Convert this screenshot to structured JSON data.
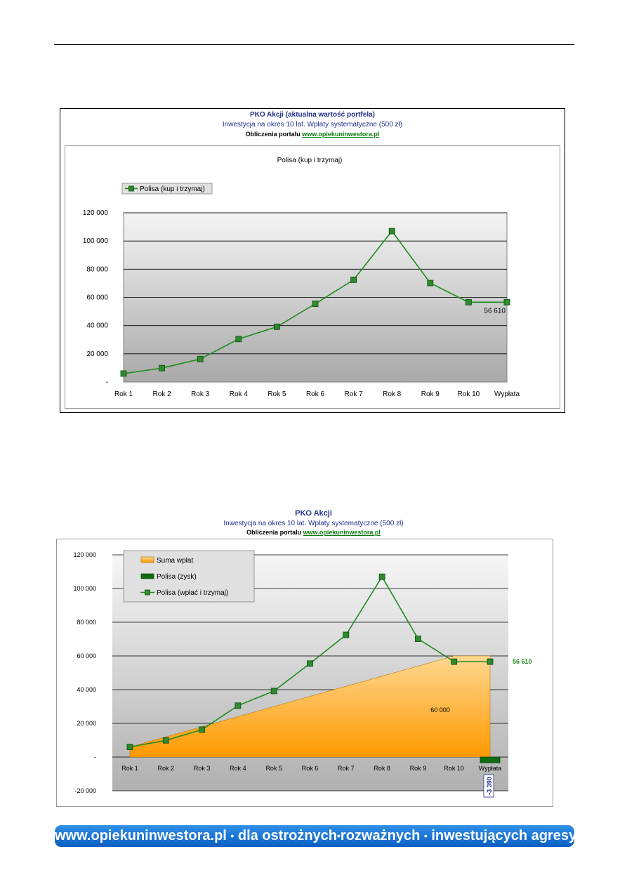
{
  "chart1": {
    "header_title": "PKO Akcji (aktualna wartość portfela)",
    "header_subtitle": "Inwestycja na okres 10 lat. Wpłaty systematyczne (500 zł)",
    "header_source_prefix": "Obliczenia portalu",
    "header_source_link": "www.opiekuninwestora.pl",
    "inner_title": "Polisa (kup i trzymaj)"
  },
  "chart2": {
    "header_title": "PKO Akcji",
    "header_subtitle": "Inwestycja na okres 10 lat. Wpłaty systematyczne (500 zł)",
    "header_source_prefix": "Obliczenia portalu",
    "header_source_link": "www.opiekuninwestora.pl"
  },
  "footer_banner": {
    "site": "www.opiekuninwestora.pl",
    "parts": [
      "dla ostrożnych",
      "rozważnych",
      "inwestujących agresywnie"
    ],
    "separator": "•"
  },
  "colors": {
    "title_blue": "#1f2f8c",
    "link_green": "#0a7a0a",
    "line_green": "#1f8a1f",
    "marker_green": "#2e8b2e",
    "area_orange_top": "#ffd890",
    "area_orange_bottom": "#ff9900",
    "banner_blue": "#1a73d9"
  },
  "chart_data": [
    {
      "type": "line",
      "title": "Polisa (kup i trzymaj)",
      "categories": [
        "Rok 1",
        "Rok 2",
        "Rok 3",
        "Rok 4",
        "Rok 5",
        "Rok 6",
        "Rok 7",
        "Rok 8",
        "Rok 9",
        "Rok 10",
        "Wypłata"
      ],
      "series": [
        {
          "name": "Polisa (kup i trzymaj)",
          "values": [
            6000,
            9900,
            16300,
            30500,
            39200,
            55500,
            72500,
            107000,
            70200,
            56610,
            56610
          ]
        }
      ],
      "data_labels": [
        {
          "category": "Wypłata",
          "series": "Polisa (kup i trzymaj)",
          "text": "56 610"
        }
      ],
      "yticks": [
        "-",
        "20 000",
        "40 000",
        "60 000",
        "80 000",
        "100 000",
        "120 000"
      ],
      "ylim": [
        0,
        120000
      ],
      "legend": "top-left",
      "grid": true
    },
    {
      "type": "area",
      "categories": [
        "Rok 1",
        "Rok 2",
        "Rok 3",
        "Rok 4",
        "Rok 5",
        "Rok 6",
        "Rok 7",
        "Rok 8",
        "Rok 9",
        "Rok 10",
        "Wypłata"
      ],
      "series": [
        {
          "name": "Suma wpłat",
          "type": "area",
          "values": [
            6000,
            12000,
            18000,
            24000,
            30000,
            36000,
            42000,
            48000,
            54000,
            60000,
            60000
          ]
        },
        {
          "name": "Polisa (zysk)",
          "type": "bar",
          "values": [
            null,
            null,
            null,
            null,
            null,
            null,
            null,
            null,
            null,
            null,
            -3390
          ]
        },
        {
          "name": "Polisa (wpłać i trzymaj)",
          "type": "line",
          "values": [
            6000,
            9900,
            16300,
            30500,
            39200,
            55500,
            72500,
            107000,
            70200,
            56610,
            56610
          ]
        }
      ],
      "data_labels": [
        {
          "category": "Wypłata",
          "series": "Polisa (wpłać i trzymaj)",
          "text": "56 610"
        },
        {
          "category": "Wypłata",
          "series": "Suma wpłat",
          "text": "60 000"
        },
        {
          "category": "Wypłata",
          "series": "Polisa (zysk)",
          "text": "-3 390"
        }
      ],
      "yticks": [
        "-20 000",
        "-",
        "20 000",
        "40 000",
        "60 000",
        "80 000",
        "100 000",
        "120 000"
      ],
      "ylim": [
        -20000,
        120000
      ],
      "legend": "top-left",
      "grid": true
    }
  ]
}
